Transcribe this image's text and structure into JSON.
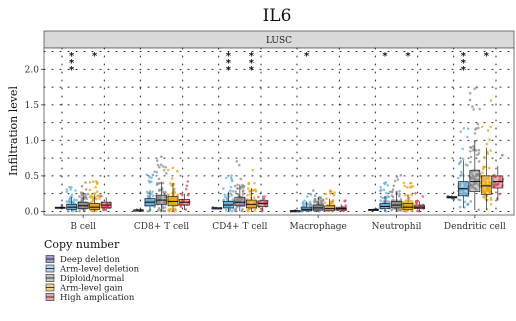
{
  "chart_data": {
    "type": "box",
    "title": "IL6",
    "panel_label": "LUSC",
    "ylabel": "Infiltration level",
    "xlabel": "",
    "ylim": [
      -0.05,
      2.3
    ],
    "yticks": [
      0.0,
      0.5,
      1.0,
      1.5,
      2.0
    ],
    "ytick_labels": [
      "0.0",
      "0.5",
      "1.0",
      "1.5",
      "2.0"
    ],
    "grid": true,
    "categories": [
      "B cell",
      "CD8+ T cell",
      "CD4+ T cell",
      "Macrophage",
      "Neutrophil",
      "Dendritic cell"
    ],
    "legend": {
      "title": "Copy number",
      "position": "bottom-left",
      "entries": [
        "Deep deletion",
        "Arm-level deletion",
        "Diploid/normal",
        "Arm-level gain",
        "High amplication"
      ]
    },
    "series": [
      {
        "name": "Deep deletion",
        "color": "#3a3d9e",
        "boxes": [
          [
            0.04,
            0.05,
            0.05,
            0.06,
            0.07
          ],
          [
            0.01,
            0.02,
            0.02,
            0.02,
            0.03
          ],
          [
            0.04,
            0.04,
            0.05,
            0.05,
            0.06
          ],
          [
            0.0,
            0.01,
            0.01,
            0.01,
            0.02
          ],
          [
            0.02,
            0.02,
            0.02,
            0.03,
            0.03
          ],
          [
            0.17,
            0.19,
            0.2,
            0.21,
            0.23
          ]
        ]
      },
      {
        "name": "Arm-level deletion",
        "color": "#6aaed6",
        "boxes": [
          [
            0.0,
            0.03,
            0.06,
            0.1,
            0.2
          ],
          [
            0.0,
            0.08,
            0.13,
            0.18,
            0.3
          ],
          [
            0.0,
            0.05,
            0.09,
            0.14,
            0.28
          ],
          [
            0.0,
            0.01,
            0.03,
            0.06,
            0.14
          ],
          [
            0.0,
            0.04,
            0.07,
            0.11,
            0.22
          ],
          [
            0.05,
            0.22,
            0.32,
            0.42,
            0.72
          ]
        ]
      },
      {
        "name": "Diploid/normal",
        "color": "#8c8c8c",
        "boxes": [
          [
            0.0,
            0.04,
            0.08,
            0.13,
            0.27
          ],
          [
            0.0,
            0.1,
            0.16,
            0.23,
            0.42
          ],
          [
            0.0,
            0.08,
            0.13,
            0.2,
            0.38
          ],
          [
            0.0,
            0.02,
            0.05,
            0.09,
            0.2
          ],
          [
            0.0,
            0.05,
            0.09,
            0.14,
            0.28
          ],
          [
            0.02,
            0.28,
            0.42,
            0.58,
            1.0
          ]
        ]
      },
      {
        "name": "Arm-level gain",
        "color": "#e8a317",
        "boxes": [
          [
            0.0,
            0.03,
            0.06,
            0.11,
            0.23
          ],
          [
            0.0,
            0.08,
            0.14,
            0.21,
            0.4
          ],
          [
            0.0,
            0.05,
            0.1,
            0.16,
            0.33
          ],
          [
            0.0,
            0.01,
            0.04,
            0.08,
            0.18
          ],
          [
            0.0,
            0.03,
            0.06,
            0.11,
            0.23
          ],
          [
            0.02,
            0.24,
            0.36,
            0.5,
            0.9
          ]
        ]
      },
      {
        "name": "High amplication",
        "color": "#d94b5c",
        "boxes": [
          [
            0.0,
            0.05,
            0.09,
            0.13,
            0.2
          ],
          [
            0.02,
            0.09,
            0.13,
            0.17,
            0.25
          ],
          [
            0.0,
            0.07,
            0.11,
            0.15,
            0.22
          ],
          [
            0.0,
            0.02,
            0.04,
            0.06,
            0.1
          ],
          [
            0.0,
            0.04,
            0.06,
            0.09,
            0.14
          ],
          [
            0.15,
            0.33,
            0.42,
            0.5,
            0.64
          ]
        ]
      }
    ],
    "significance": [
      {
        "category": "B cell",
        "group": "Arm-level deletion",
        "label": "***"
      },
      {
        "category": "B cell",
        "group": "Arm-level gain",
        "label": "*"
      },
      {
        "category": "CD4+ T cell",
        "group": "Arm-level deletion",
        "label": "***"
      },
      {
        "category": "CD4+ T cell",
        "group": "Arm-level gain",
        "label": "***"
      },
      {
        "category": "Macrophage",
        "group": "Arm-level deletion",
        "label": "*"
      },
      {
        "category": "Neutrophil",
        "group": "Arm-level deletion",
        "label": "*"
      },
      {
        "category": "Neutrophil",
        "group": "Arm-level gain",
        "label": "*"
      },
      {
        "category": "Dendritic cell",
        "group": "Arm-level deletion",
        "label": "***"
      },
      {
        "category": "Dendritic cell",
        "group": "Arm-level gain",
        "label": "*"
      }
    ]
  }
}
